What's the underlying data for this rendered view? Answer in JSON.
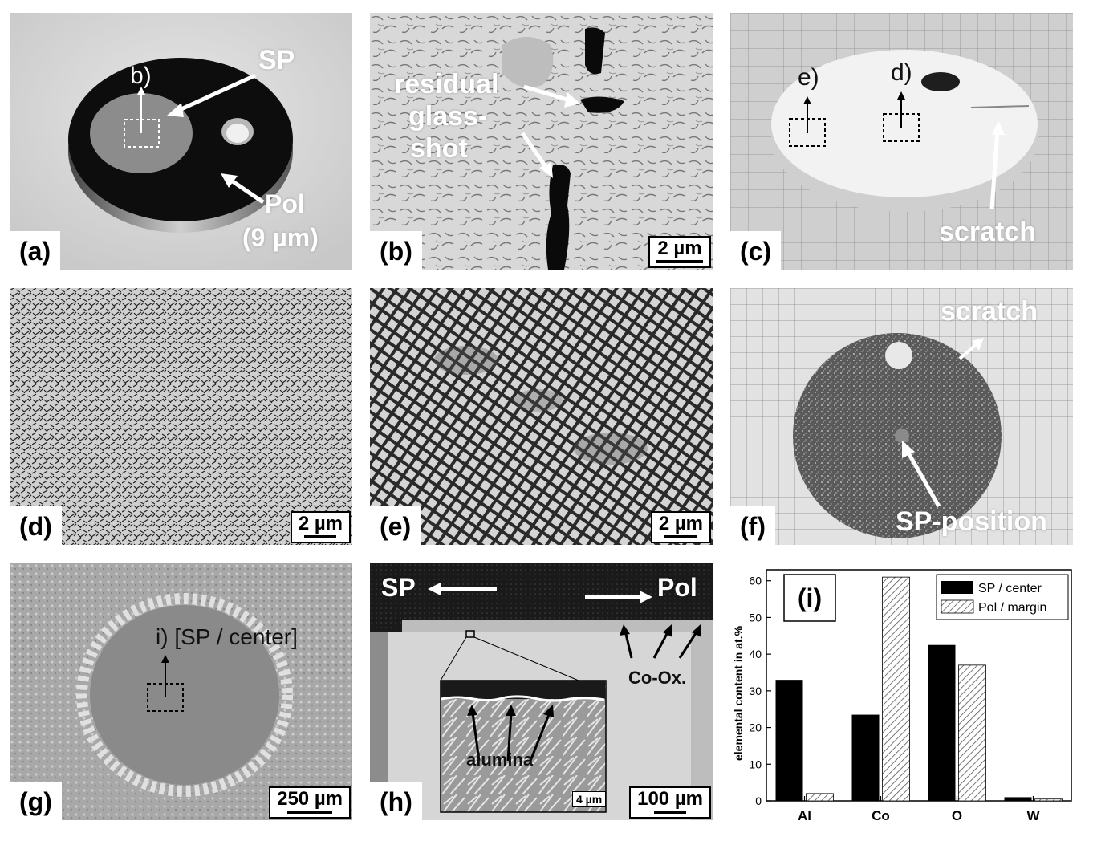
{
  "panels": {
    "a": {
      "label": "(a)",
      "sp": "SP",
      "b_ref": "b)",
      "pol": "Pol",
      "pol_thickness": "(9 µm)"
    },
    "b": {
      "label": "(b)",
      "annotation_lines": [
        "residual",
        "glass-",
        "shot"
      ],
      "scale": "2 µm"
    },
    "c": {
      "label": "(c)",
      "e_ref": "e)",
      "d_ref": "d)",
      "scratch": "scratch"
    },
    "d": {
      "label": "(d)",
      "scale": "2 µm"
    },
    "e": {
      "label": "(e)",
      "scale": "2 µm"
    },
    "f": {
      "label": "(f)",
      "scratch": "scratch",
      "sp_position": "SP-position"
    },
    "g": {
      "label": "(g)",
      "annotation": "i) [SP / center]",
      "scale": "250 µm"
    },
    "h": {
      "label": "(h)",
      "sp": "SP",
      "pol": "Pol",
      "co_ox": "Co-Ox.",
      "alumina": "alumina",
      "inset_scale": "4 µm",
      "scale": "100 µm"
    }
  },
  "chart_data": {
    "type": "bar",
    "panel_label": "(i)",
    "categories": [
      "Al",
      "Co",
      "O",
      "W"
    ],
    "series": [
      {
        "name": "SP / center",
        "values": [
          33,
          23.5,
          42.5,
          1
        ],
        "fill": "solid-black"
      },
      {
        "name": "Pol / margin",
        "values": [
          2,
          61,
          37,
          0.5
        ],
        "fill": "hatched"
      }
    ],
    "ylabel": "elemental content in at.%",
    "ylim": [
      0,
      63
    ],
    "yticks": [
      0,
      10,
      20,
      30,
      40,
      50,
      60
    ],
    "legend_position": "top-right",
    "colors": {
      "series1": "#000000",
      "series2": "#ffffff",
      "hatch": "#555555"
    }
  }
}
